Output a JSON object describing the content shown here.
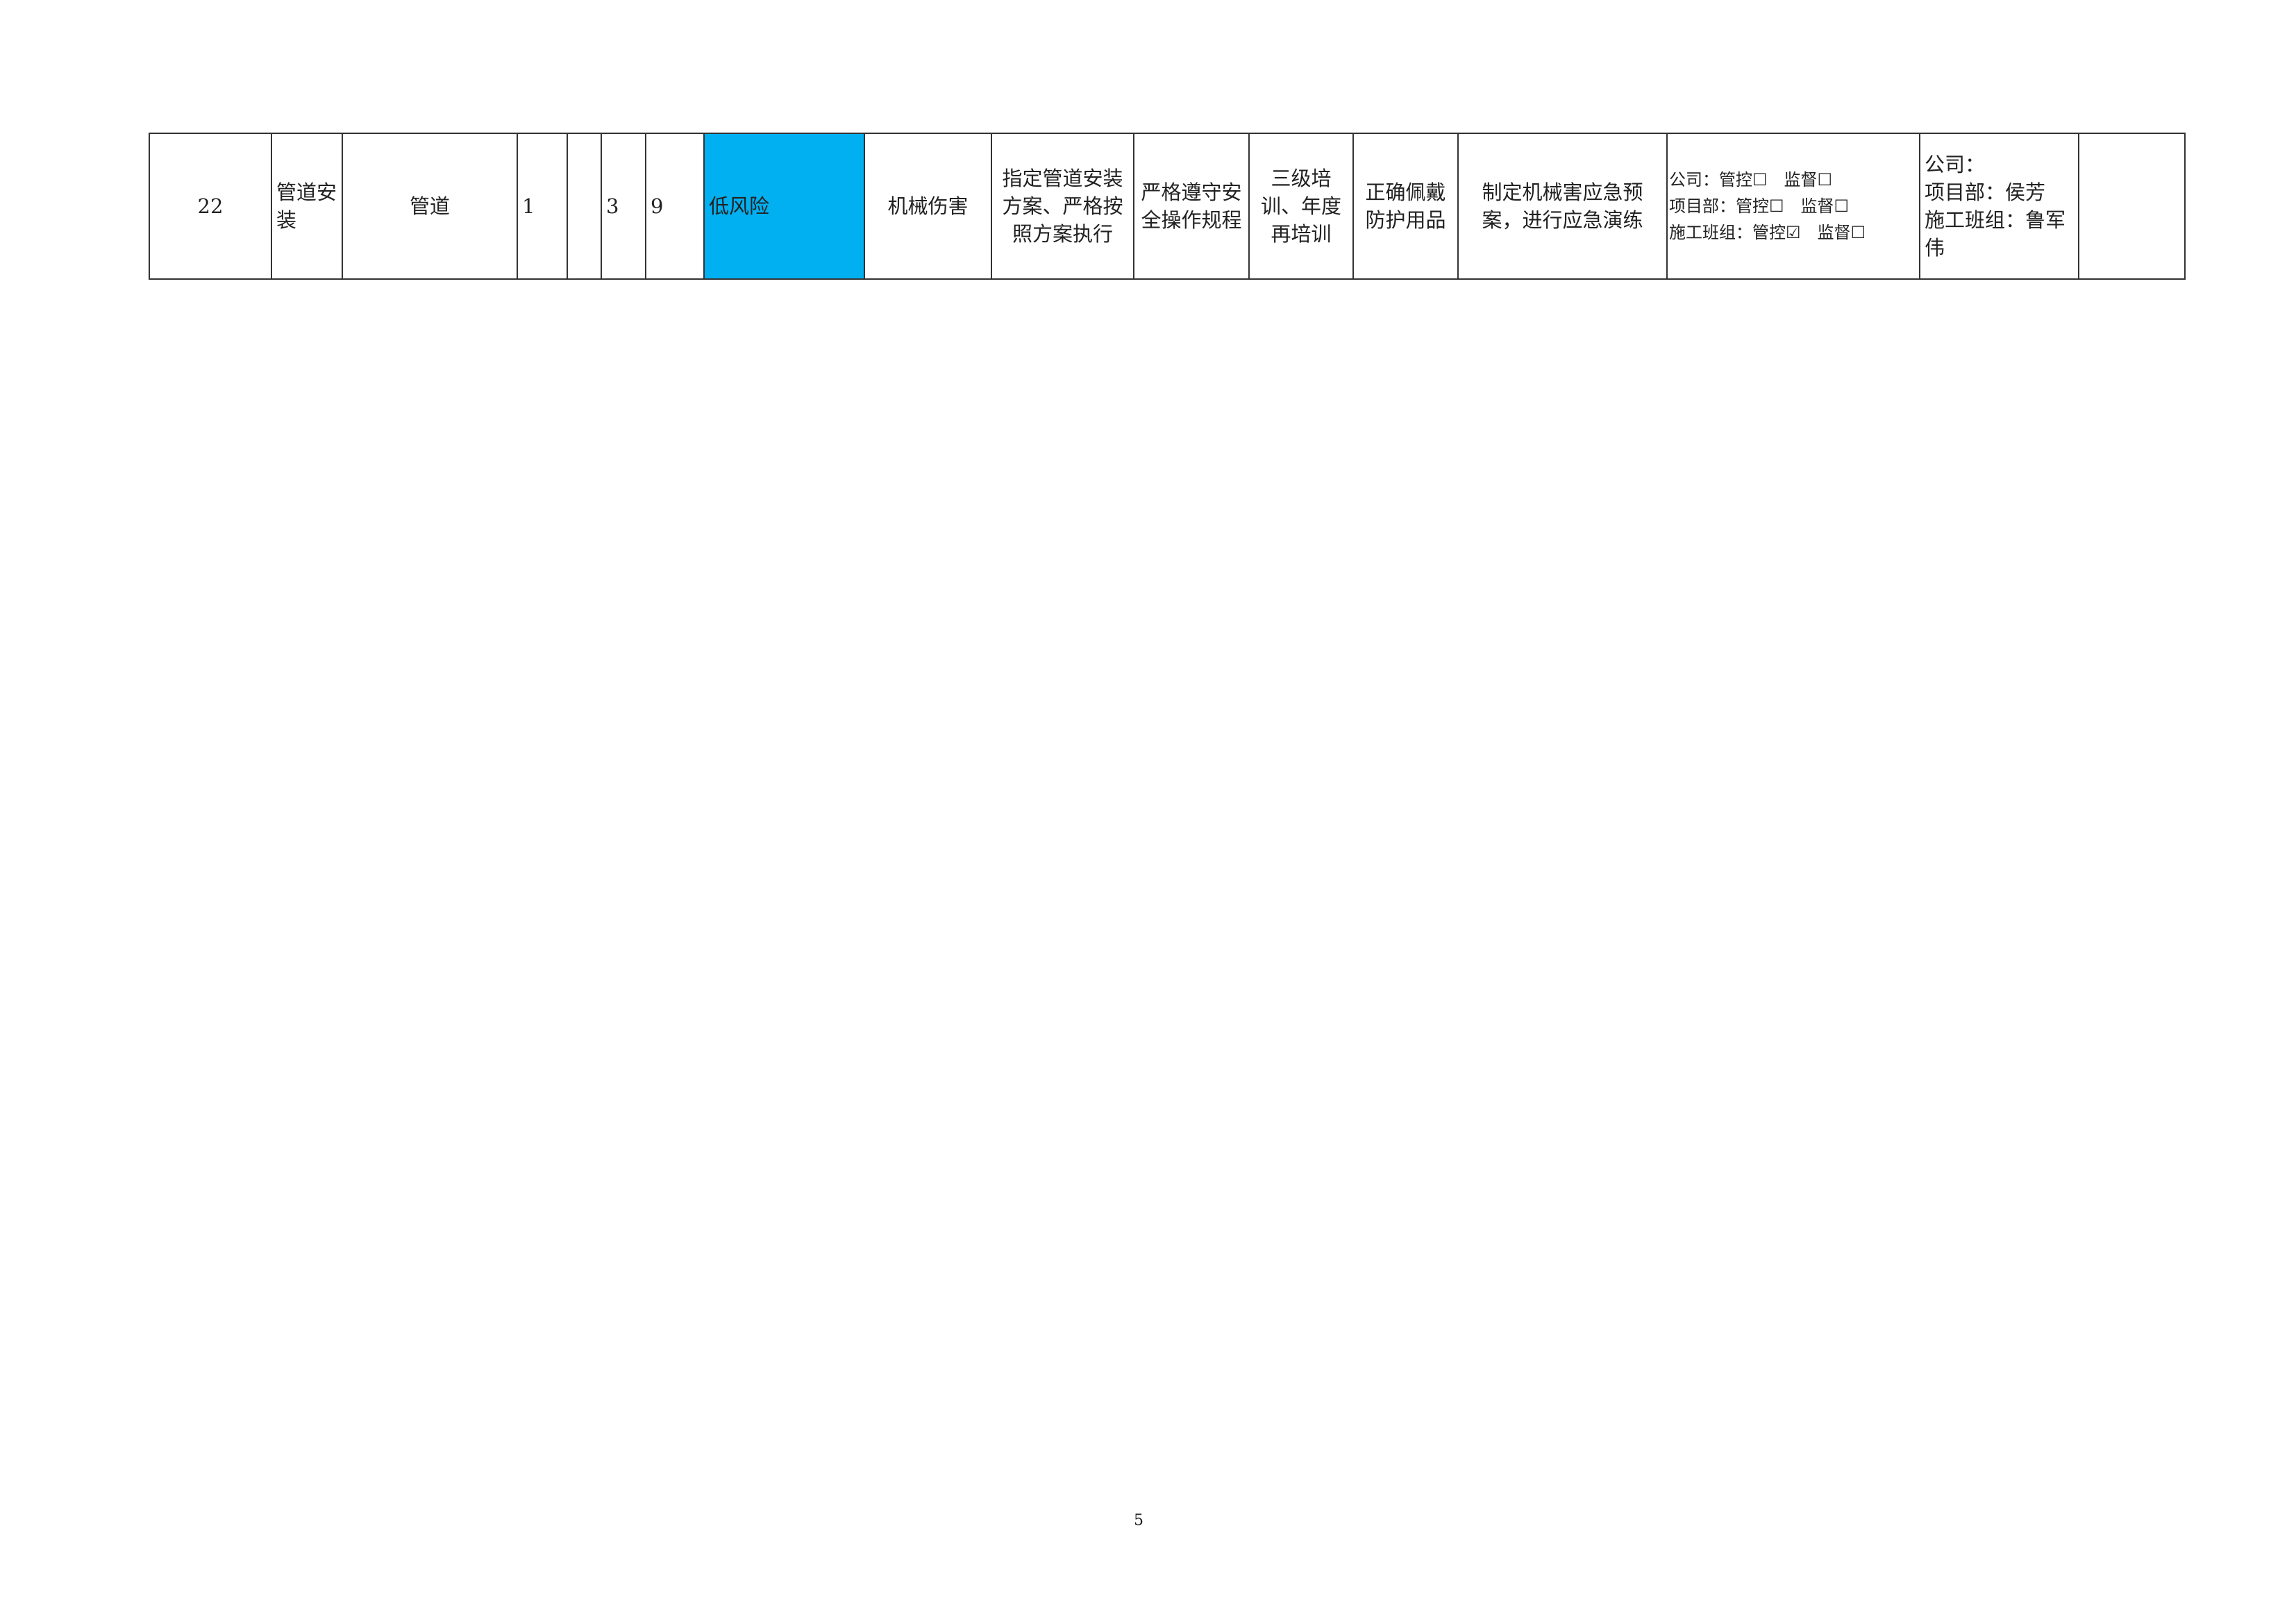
{
  "table": {
    "rows": [
      {
        "cells": [
          "22",
          "管道安装",
          "管道",
          "1",
          null,
          "3",
          "9",
          "低风险",
          "机械伤害",
          "指定管道安装方案、严格按照方案执行",
          "严格遵守安全操作规程",
          "三级培训、年度再培训",
          "正确佩戴防护用品",
          "制定机械害应急预案，进行应急演练",
          [
            "公司：管控☐　监督☐",
            "项目部：管控☐　监督☐",
            "施工班组：管控☑　监督☐"
          ],
          [
            "公司：",
            "项目部：侯芳",
            "施工班组：鲁军伟"
          ],
          null
        ]
      }
    ]
  },
  "footer": {
    "page_number": "5"
  }
}
